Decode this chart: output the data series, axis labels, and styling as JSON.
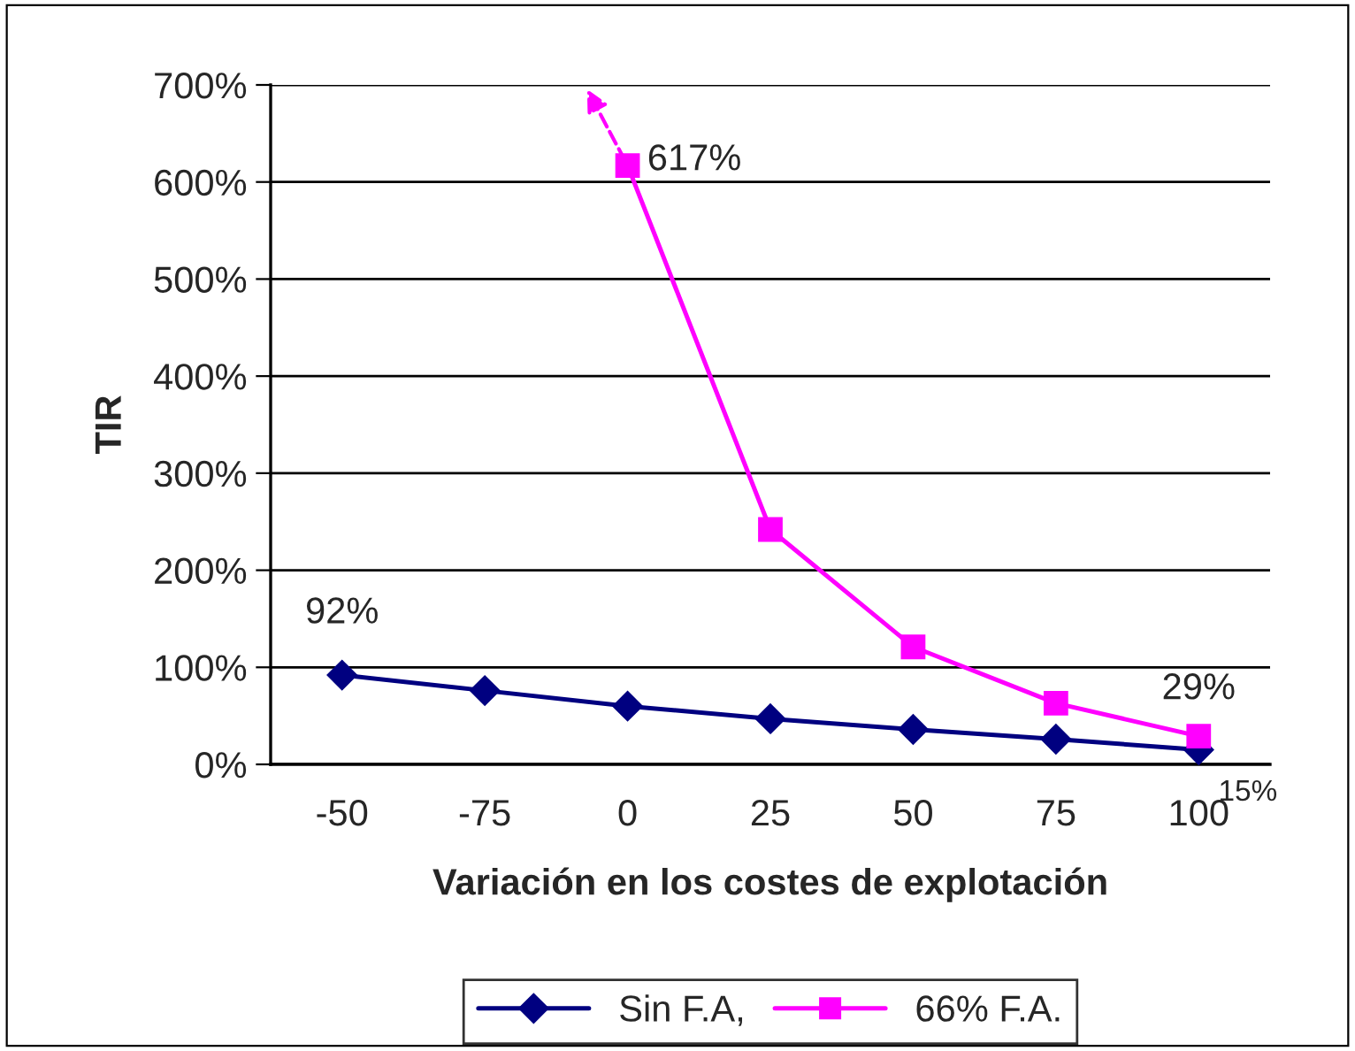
{
  "chart_data": {
    "type": "line",
    "xlabel": "Variación en los costes de explotación",
    "ylabel": "TIR",
    "categories": [
      "-50",
      "-75",
      "0",
      "25",
      "50",
      "75",
      "100"
    ],
    "series": [
      {
        "name": "Sin F.A,",
        "color": "#000080",
        "marker": "diamond",
        "values": [
          92,
          76,
          60,
          47,
          36,
          26,
          15
        ],
        "value_labels": [
          "92%",
          null,
          null,
          null,
          null,
          null,
          "15%"
        ]
      },
      {
        "name": "66% F.A.",
        "color": "#ff00ff",
        "marker": "square",
        "values": [
          null,
          null,
          617,
          242,
          121,
          63,
          29
        ],
        "value_labels": [
          null,
          null,
          "617%",
          null,
          null,
          null,
          "29%"
        ]
      }
    ],
    "ylim": [
      0,
      700
    ],
    "yticks": [
      {
        "value": 0,
        "label": "0%"
      },
      {
        "value": 100,
        "label": "100%"
      },
      {
        "value": 200,
        "label": "200%"
      },
      {
        "value": 300,
        "label": "300%"
      },
      {
        "value": 400,
        "label": "400%"
      },
      {
        "value": 500,
        "label": "500%"
      },
      {
        "value": 600,
        "label": "600%"
      },
      {
        "value": 700,
        "label": "700%"
      }
    ],
    "grid": "y",
    "legend": "bottom",
    "line_style": "solid"
  }
}
